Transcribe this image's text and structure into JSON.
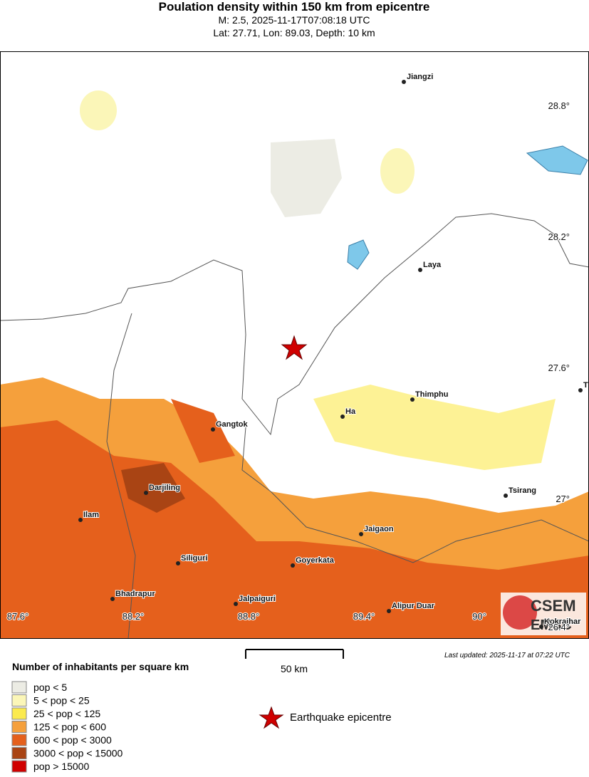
{
  "header": {
    "title": "Poulation density within 150 km from epicentre",
    "line1": "M: 2.5,  2025-11-17T07:08:18 UTC",
    "line2": "Lat: 27.71, Lon: 89.03, Depth: 10 km"
  },
  "map": {
    "cities": [
      "Jiangzi",
      "Laya",
      "Thimphu",
      "Ha",
      "Gangtok",
      "Darjiling",
      "Ilam",
      "Tsirang",
      "Jaigaon",
      "Siliguri",
      "Goyerkata",
      "Bhadrapur",
      "Jalpaiguri",
      "Alipur Duar",
      "Kokrajhar",
      "T"
    ],
    "lat_labels": [
      "28.8°",
      "28.2°",
      "27.6°",
      "27°",
      "26.4°"
    ],
    "lon_labels": [
      "87.6°",
      "88.2°",
      "88.8°",
      "89.4°",
      "90°"
    ],
    "logo": "CSEM",
    "logo2": "EMSC"
  },
  "scale": {
    "label": "50 km"
  },
  "updated": "Last updated: 2025-11-17 at 07:22 UTC",
  "legend": {
    "title": "Number of inhabitants per square km",
    "items": [
      {
        "label": "pop < 5",
        "color": "#ececE4"
      },
      {
        "label": "5 < pop < 25",
        "color": "#fbf6b8"
      },
      {
        "label": "25 < pop < 125",
        "color": "#fbea4e"
      },
      {
        "label": "125 < pop < 600",
        "color": "#f5a03c"
      },
      {
        "label": "600 < pop < 3000",
        "color": "#e5601c"
      },
      {
        "label": "3000 < pop < 15000",
        "color": "#a94414"
      },
      {
        "label": "pop > 15000",
        "color": "#d00000"
      }
    ],
    "epicentre": "Earthquake epicentre"
  }
}
